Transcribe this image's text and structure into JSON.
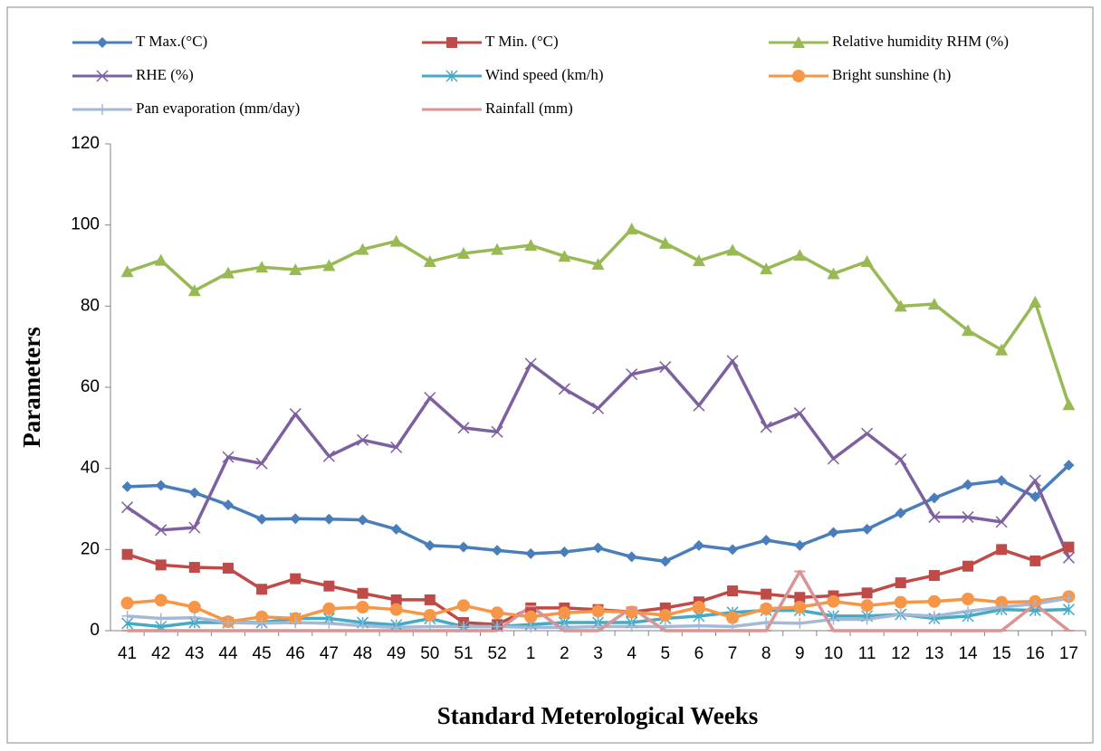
{
  "chart_data": {
    "type": "line",
    "x_label": "Standard Meterological Weeks",
    "y_label": "Parameters",
    "categories": [
      "41",
      "42",
      "43",
      "44",
      "45",
      "46",
      "47",
      "48",
      "49",
      "50",
      "51",
      "52",
      "1",
      "2",
      "3",
      "4",
      "5",
      "6",
      "7",
      "8",
      "9",
      "10",
      "11",
      "12",
      "13",
      "14",
      "15",
      "16",
      "17"
    ],
    "ylim": [
      0,
      120
    ],
    "yticks": [
      0,
      20,
      40,
      60,
      80,
      100,
      120
    ],
    "grid": false,
    "legend": "top",
    "series": [
      {
        "name": "T Max.(°C)",
        "color": "#4a7ebb",
        "marker": "diamond",
        "values": [
          35.5,
          35.8,
          34,
          31,
          27.5,
          27.6,
          27.5,
          27.3,
          25,
          21,
          20.6,
          19.8,
          19,
          19.4,
          20.4,
          18.2,
          17.1,
          21,
          20,
          22.3,
          21,
          24.2,
          25,
          29,
          32.7,
          36,
          37,
          33,
          40.8
        ]
      },
      {
        "name": "T Min. (°C)",
        "color": "#be4b48",
        "marker": "square",
        "values": [
          18.8,
          16.2,
          15.6,
          15.4,
          10.2,
          12.8,
          11,
          9.2,
          7.6,
          7.6,
          2,
          1.5,
          5.6,
          5.6,
          5.2,
          4.6,
          5.6,
          7.1,
          9.8,
          9,
          8.2,
          8.6,
          9.3,
          11.8,
          13.6,
          15.9,
          20,
          17.2,
          20.6
        ]
      },
      {
        "name": "Relative humidity RHM (%)",
        "color": "#98b954",
        "marker": "triangle",
        "values": [
          88.5,
          91.3,
          83.8,
          88.2,
          89.6,
          89,
          90,
          94,
          96,
          91,
          93,
          94,
          95,
          92.3,
          90.3,
          99,
          95.5,
          91.2,
          93.8,
          89.2,
          92.5,
          88,
          91,
          80,
          80.5,
          74,
          69.2,
          81,
          55.7
        ]
      },
      {
        "name": "RHE (%)",
        "color": "#7d60a0",
        "marker": "x",
        "values": [
          30.4,
          24.8,
          25.4,
          42.8,
          41.2,
          53.4,
          43,
          47,
          45.2,
          57.4,
          50,
          49,
          65.8,
          59.6,
          54.8,
          63.2,
          65,
          55.5,
          66.5,
          50.2,
          53.6,
          42.4,
          48.6,
          42.2,
          28,
          28,
          26.8,
          37,
          18
        ]
      },
      {
        "name": "Wind speed (km/h)",
        "color": "#46aac5",
        "marker": "asterisk",
        "values": [
          1.8,
          1,
          2,
          2,
          2,
          3,
          3,
          2,
          1.4,
          3,
          1,
          1,
          1.5,
          2,
          2,
          2,
          3,
          3.6,
          4.5,
          5,
          5,
          3.6,
          3.6,
          4,
          3,
          3.6,
          5.2,
          5,
          5.2
        ]
      },
      {
        "name": "Bright sunshine (h)",
        "color": "#f79646",
        "marker": "circle",
        "values": [
          6.8,
          7.5,
          5.8,
          2.2,
          3.4,
          3,
          5.4,
          5.8,
          5.2,
          3.8,
          6.2,
          4.4,
          3.4,
          4.4,
          4.8,
          4.6,
          3.8,
          5.8,
          3.2,
          5.4,
          5.8,
          7.2,
          6.2,
          7,
          7.2,
          7.8,
          7,
          7.2,
          8.4
        ]
      },
      {
        "name": "Pan evaporation (mm/day)",
        "color": "#a5b8d8",
        "marker": "plus",
        "values": [
          3.6,
          3,
          3.2,
          2,
          1.8,
          2,
          1.8,
          1.2,
          0.8,
          1,
          1,
          1,
          0.8,
          0.8,
          1,
          1,
          1,
          1.2,
          1,
          2,
          1.8,
          2.8,
          2.8,
          4,
          3.6,
          4.8,
          5.8,
          6.6,
          8
        ]
      },
      {
        "name": "Rainfall (mm)",
        "color": "#d99594",
        "marker": "dash",
        "values": [
          0,
          0,
          0,
          0,
          0,
          0,
          0,
          0,
          0,
          0,
          0,
          0,
          6,
          0,
          0,
          5.6,
          0,
          0,
          0,
          0,
          14.6,
          0,
          0,
          0,
          0,
          0,
          0,
          6.5,
          0
        ]
      }
    ]
  }
}
